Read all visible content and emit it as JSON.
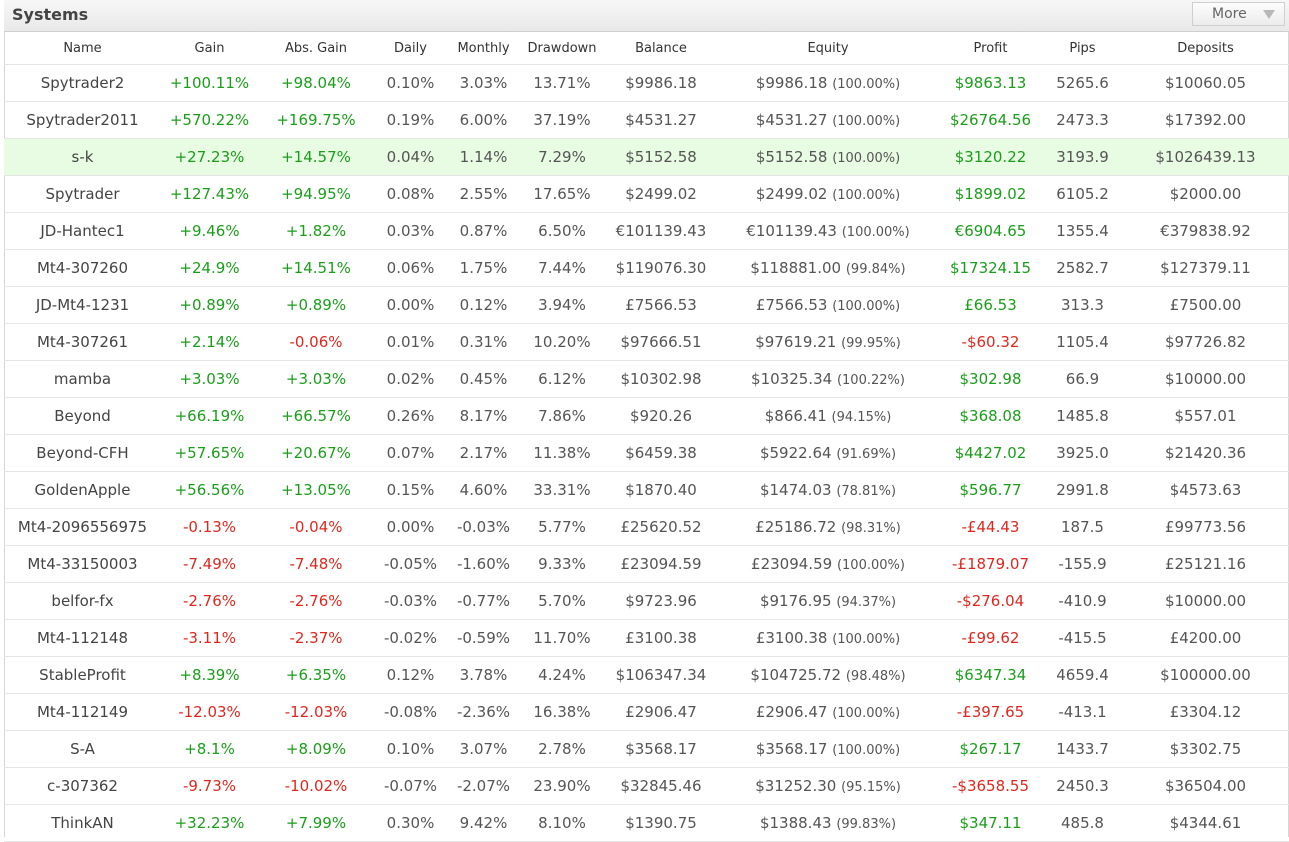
{
  "panel": {
    "title": "Systems",
    "more_label": "More"
  },
  "columns": [
    "Name",
    "Gain",
    "Abs. Gain",
    "Daily",
    "Monthly",
    "Drawdown",
    "Balance",
    "Equity",
    "Profit",
    "Pips",
    "Deposits"
  ],
  "highlight_row": 2,
  "colors": {
    "positive": "#1a9e1a",
    "negative": "#e0271f",
    "highlight": "#e8fbe3"
  },
  "rows": [
    {
      "name": "Spytrader2",
      "gain": "+100.11%",
      "abs_gain": "+98.04%",
      "daily": "0.10%",
      "monthly": "3.03%",
      "drawdown": "13.71%",
      "balance": "$9986.18",
      "equity": "$9986.18",
      "equity_pct": "(100.00%)",
      "profit": "$9863.13",
      "pips": "5265.6",
      "deposits": "$10060.05"
    },
    {
      "name": "Spytrader2011",
      "gain": "+570.22%",
      "abs_gain": "+169.75%",
      "daily": "0.19%",
      "monthly": "6.00%",
      "drawdown": "37.19%",
      "balance": "$4531.27",
      "equity": "$4531.27",
      "equity_pct": "(100.00%)",
      "profit": "$26764.56",
      "pips": "2473.3",
      "deposits": "$17392.00"
    },
    {
      "name": "s-k",
      "gain": "+27.23%",
      "abs_gain": "+14.57%",
      "daily": "0.04%",
      "monthly": "1.14%",
      "drawdown": "7.29%",
      "balance": "$5152.58",
      "equity": "$5152.58",
      "equity_pct": "(100.00%)",
      "profit": "$3120.22",
      "pips": "3193.9",
      "deposits": "$1026439.13"
    },
    {
      "name": "Spytrader",
      "gain": "+127.43%",
      "abs_gain": "+94.95%",
      "daily": "0.08%",
      "monthly": "2.55%",
      "drawdown": "17.65%",
      "balance": "$2499.02",
      "equity": "$2499.02",
      "equity_pct": "(100.00%)",
      "profit": "$1899.02",
      "pips": "6105.2",
      "deposits": "$2000.00"
    },
    {
      "name": "JD-Hantec1",
      "gain": "+9.46%",
      "abs_gain": "+1.82%",
      "daily": "0.03%",
      "monthly": "0.87%",
      "drawdown": "6.50%",
      "balance": "€101139.43",
      "equity": "€101139.43",
      "equity_pct": "(100.00%)",
      "profit": "€6904.65",
      "pips": "1355.4",
      "deposits": "€379838.92"
    },
    {
      "name": "Mt4-307260",
      "gain": "+24.9%",
      "abs_gain": "+14.51%",
      "daily": "0.06%",
      "monthly": "1.75%",
      "drawdown": "7.44%",
      "balance": "$119076.30",
      "equity": "$118881.00",
      "equity_pct": "(99.84%)",
      "profit": "$17324.15",
      "pips": "2582.7",
      "deposits": "$127379.11"
    },
    {
      "name": "JD-Mt4-1231",
      "gain": "+0.89%",
      "abs_gain": "+0.89%",
      "daily": "0.00%",
      "monthly": "0.12%",
      "drawdown": "3.94%",
      "balance": "£7566.53",
      "equity": "£7566.53",
      "equity_pct": "(100.00%)",
      "profit": "£66.53",
      "pips": "313.3",
      "deposits": "£7500.00"
    },
    {
      "name": "Mt4-307261",
      "gain": "+2.14%",
      "abs_gain": "-0.06%",
      "daily": "0.01%",
      "monthly": "0.31%",
      "drawdown": "10.20%",
      "balance": "$97666.51",
      "equity": "$97619.21",
      "equity_pct": "(99.95%)",
      "profit": "-$60.32",
      "pips": "1105.4",
      "deposits": "$97726.82"
    },
    {
      "name": "mamba",
      "gain": "+3.03%",
      "abs_gain": "+3.03%",
      "daily": "0.02%",
      "monthly": "0.45%",
      "drawdown": "6.12%",
      "balance": "$10302.98",
      "equity": "$10325.34",
      "equity_pct": "(100.22%)",
      "profit": "$302.98",
      "pips": "66.9",
      "deposits": "$10000.00"
    },
    {
      "name": "Beyond",
      "gain": "+66.19%",
      "abs_gain": "+66.57%",
      "daily": "0.26%",
      "monthly": "8.17%",
      "drawdown": "7.86%",
      "balance": "$920.26",
      "equity": "$866.41",
      "equity_pct": "(94.15%)",
      "profit": "$368.08",
      "pips": "1485.8",
      "deposits": "$557.01"
    },
    {
      "name": "Beyond-CFH",
      "gain": "+57.65%",
      "abs_gain": "+20.67%",
      "daily": "0.07%",
      "monthly": "2.17%",
      "drawdown": "11.38%",
      "balance": "$6459.38",
      "equity": "$5922.64",
      "equity_pct": "(91.69%)",
      "profit": "$4427.02",
      "pips": "3925.0",
      "deposits": "$21420.36"
    },
    {
      "name": "GoldenApple",
      "gain": "+56.56%",
      "abs_gain": "+13.05%",
      "daily": "0.15%",
      "monthly": "4.60%",
      "drawdown": "33.31%",
      "balance": "$1870.40",
      "equity": "$1474.03",
      "equity_pct": "(78.81%)",
      "profit": "$596.77",
      "pips": "2991.8",
      "deposits": "$4573.63"
    },
    {
      "name": "Mt4-2096556975",
      "gain": "-0.13%",
      "abs_gain": "-0.04%",
      "daily": "0.00%",
      "monthly": "-0.03%",
      "drawdown": "5.77%",
      "balance": "£25620.52",
      "equity": "£25186.72",
      "equity_pct": "(98.31%)",
      "profit": "-£44.43",
      "pips": "187.5",
      "deposits": "£99773.56"
    },
    {
      "name": "Mt4-33150003",
      "gain": "-7.49%",
      "abs_gain": "-7.48%",
      "daily": "-0.05%",
      "monthly": "-1.60%",
      "drawdown": "9.33%",
      "balance": "£23094.59",
      "equity": "£23094.59",
      "equity_pct": "(100.00%)",
      "profit": "-£1879.07",
      "pips": "-155.9",
      "deposits": "£25121.16"
    },
    {
      "name": "belfor-fx",
      "gain": "-2.76%",
      "abs_gain": "-2.76%",
      "daily": "-0.03%",
      "monthly": "-0.77%",
      "drawdown": "5.70%",
      "balance": "$9723.96",
      "equity": "$9176.95",
      "equity_pct": "(94.37%)",
      "profit": "-$276.04",
      "pips": "-410.9",
      "deposits": "$10000.00"
    },
    {
      "name": "Mt4-112148",
      "gain": "-3.11%",
      "abs_gain": "-2.37%",
      "daily": "-0.02%",
      "monthly": "-0.59%",
      "drawdown": "11.70%",
      "balance": "£3100.38",
      "equity": "£3100.38",
      "equity_pct": "(100.00%)",
      "profit": "-£99.62",
      "pips": "-415.5",
      "deposits": "£4200.00"
    },
    {
      "name": "StableProfit",
      "gain": "+8.39%",
      "abs_gain": "+6.35%",
      "daily": "0.12%",
      "monthly": "3.78%",
      "drawdown": "4.24%",
      "balance": "$106347.34",
      "equity": "$104725.72",
      "equity_pct": "(98.48%)",
      "profit": "$6347.34",
      "pips": "4659.4",
      "deposits": "$100000.00"
    },
    {
      "name": "Mt4-112149",
      "gain": "-12.03%",
      "abs_gain": "-12.03%",
      "daily": "-0.08%",
      "monthly": "-2.36%",
      "drawdown": "16.38%",
      "balance": "£2906.47",
      "equity": "£2906.47",
      "equity_pct": "(100.00%)",
      "profit": "-£397.65",
      "pips": "-413.1",
      "deposits": "£3304.12"
    },
    {
      "name": "S-A",
      "gain": "+8.1%",
      "abs_gain": "+8.09%",
      "daily": "0.10%",
      "monthly": "3.07%",
      "drawdown": "2.78%",
      "balance": "$3568.17",
      "equity": "$3568.17",
      "equity_pct": "(100.00%)",
      "profit": "$267.17",
      "pips": "1433.7",
      "deposits": "$3302.75"
    },
    {
      "name": "c-307362",
      "gain": "-9.73%",
      "abs_gain": "-10.02%",
      "daily": "-0.07%",
      "monthly": "-2.07%",
      "drawdown": "23.90%",
      "balance": "$32845.46",
      "equity": "$31252.30",
      "equity_pct": "(95.15%)",
      "profit": "-$3658.55",
      "pips": "2450.3",
      "deposits": "$36504.00"
    },
    {
      "name": "ThinkAN",
      "gain": "+32.23%",
      "abs_gain": "+7.99%",
      "daily": "0.30%",
      "monthly": "9.42%",
      "drawdown": "8.10%",
      "balance": "$1390.75",
      "equity": "$1388.43",
      "equity_pct": "(99.83%)",
      "profit": "$347.11",
      "pips": "485.8",
      "deposits": "$4344.61"
    }
  ]
}
